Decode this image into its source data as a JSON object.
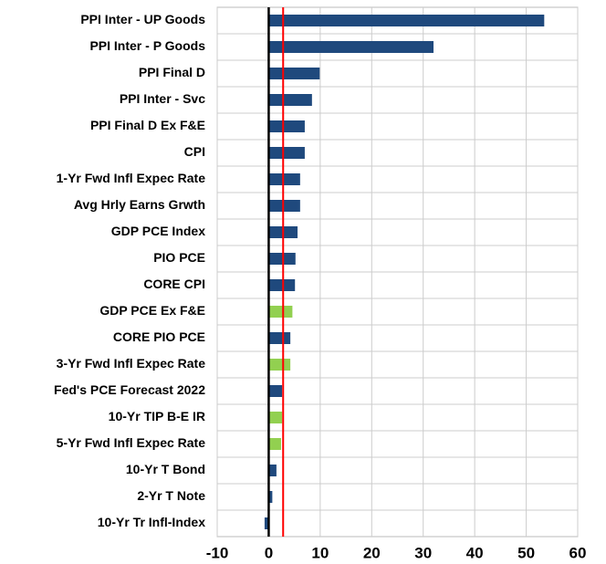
{
  "chart_data": {
    "type": "hbar",
    "categories": [
      "PPI Inter - UP Goods",
      "PPI Inter - P Goods",
      "PPI Final D",
      "PPI Inter - Svc",
      "PPI Final D Ex F&E",
      "CPI",
      "1-Yr Fwd Infl Expec Rate",
      "Avg Hrly Earns Grwth",
      "GDP PCE Index",
      "PIO PCE",
      "CORE CPI",
      "GDP PCE Ex F&E",
      "CORE PIO PCE",
      "3-Yr Fwd Infl Expec Rate",
      "Fed's PCE Forecast 2022",
      "10-Yr TIP B-E IR",
      "5-Yr Fwd Infl Expec Rate",
      "10-Yr T Bond",
      "2-Yr T Note",
      "10-Yr Tr Infl-Index"
    ],
    "values": [
      53.5,
      32.0,
      9.9,
      8.4,
      7.0,
      7.0,
      6.1,
      6.1,
      5.6,
      5.2,
      5.1,
      4.6,
      4.2,
      4.2,
      2.6,
      2.6,
      2.4,
      1.5,
      0.7,
      -0.8
    ],
    "colors": [
      "#1f497d",
      "#1f497d",
      "#1f497d",
      "#1f497d",
      "#1f497d",
      "#1f497d",
      "#1f497d",
      "#1f497d",
      "#1f497d",
      "#1f497d",
      "#1f497d",
      "#92d050",
      "#1f497d",
      "#92d050",
      "#1f497d",
      "#92d050",
      "#92d050",
      "#1f497d",
      "#1f497d",
      "#1f497d"
    ],
    "xlim": [
      -10,
      60
    ],
    "xticks": [
      -10,
      0,
      10,
      20,
      30,
      40,
      50,
      60
    ],
    "grid": true,
    "reference_line": {
      "value": 2.8,
      "color": "#ff0000"
    }
  }
}
